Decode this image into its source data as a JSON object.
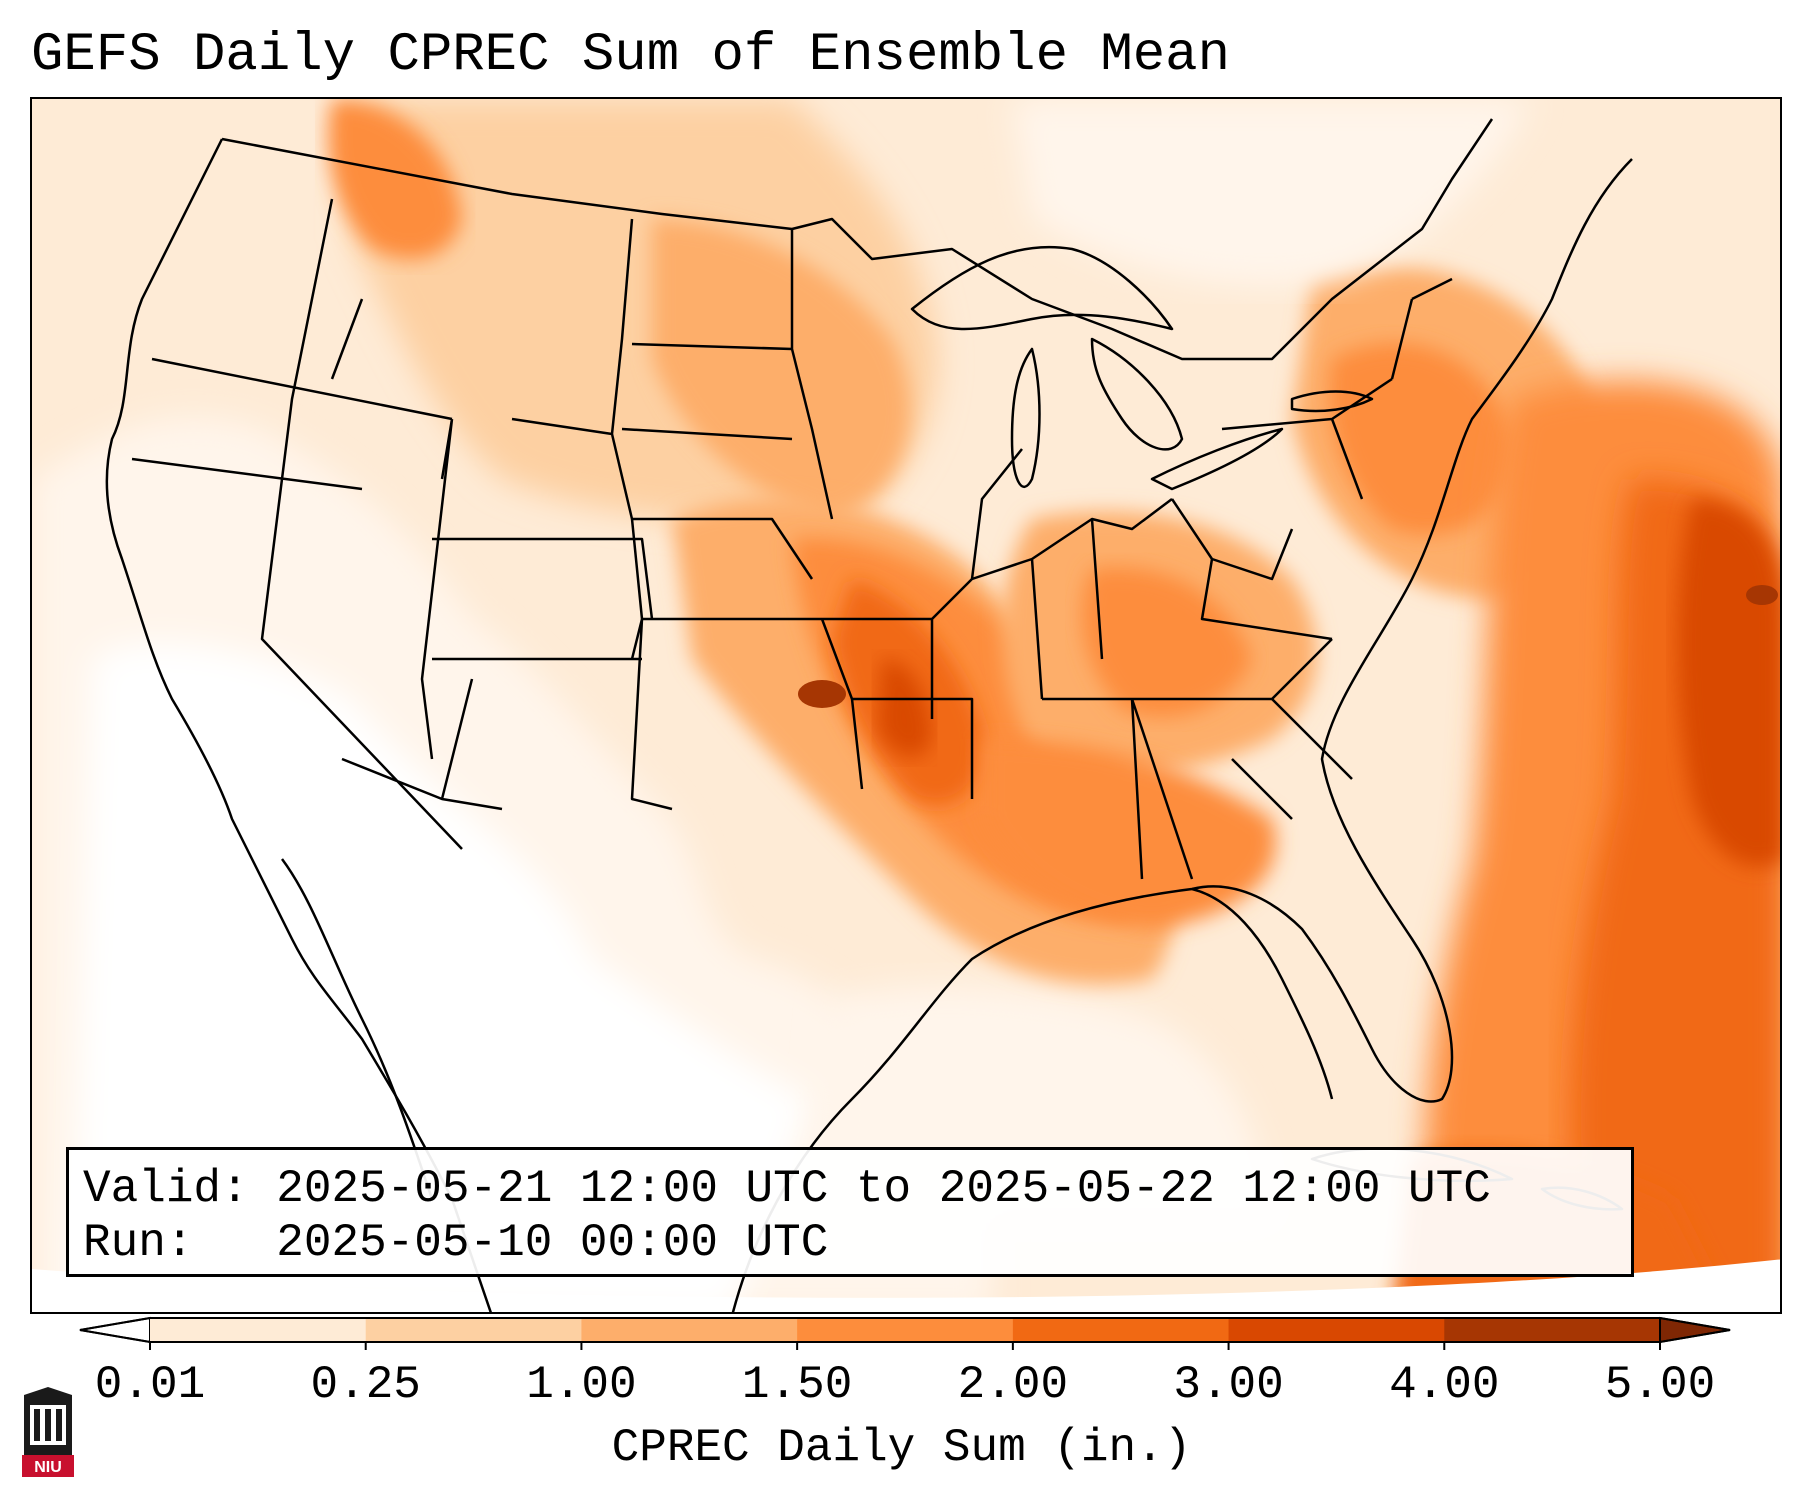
{
  "title": "GEFS Daily CPREC Sum of Ensemble Mean",
  "info": {
    "valid_label": "Valid:",
    "valid_value": "2025-05-21 12:00 UTC to 2025-05-22 12:00 UTC",
    "run_label": "Run:",
    "run_value": "2025-05-10 00:00 UTC"
  },
  "colorbar": {
    "label": "CPREC Daily Sum (in.)",
    "ticks": [
      "0.01",
      "0.25",
      "1.00",
      "1.50",
      "2.00",
      "3.00",
      "4.00",
      "5.00"
    ],
    "colors": [
      "#feebd6",
      "#fdd0a2",
      "#fdae6b",
      "#fd8d3c",
      "#f16913",
      "#d94801",
      "#a63603"
    ],
    "under_color": "#ffffff",
    "over_color": "#7f2704",
    "extend": "both"
  },
  "map": {
    "projection": "Lambert Conformal (CONUS)",
    "features": [
      "US state boundaries",
      "Country boundaries",
      "Coastlines",
      "Great Lakes",
      "Gulf of Mexico",
      "Atlantic Ocean"
    ],
    "max_precip_region": "Missouri / Oklahoma / Kansas border",
    "colors": {
      "boundary": "#000000"
    }
  },
  "logo": {
    "name": "niu-logo",
    "text": "NIU",
    "color": "#c8102e"
  }
}
